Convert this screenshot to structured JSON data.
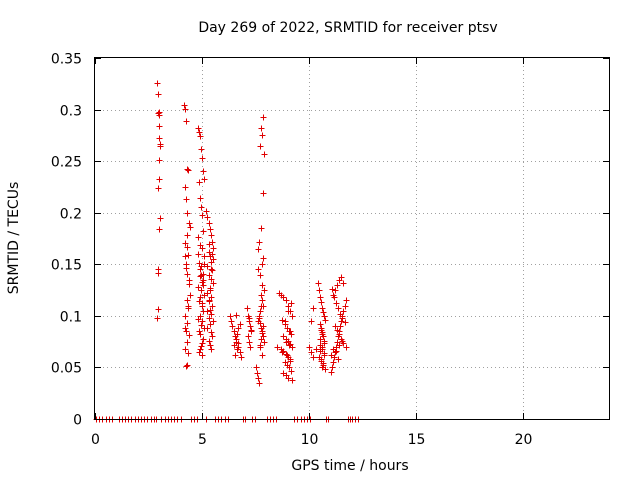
{
  "chart_data": {
    "type": "scatter",
    "title": "Day 269 of 2022, SRMTID for receiver ptsv",
    "xlabel": "GPS time / hours",
    "ylabel": "SRMTID / TECUs",
    "xlim": [
      0,
      24
    ],
    "ylim": [
      0,
      0.35
    ],
    "xticks": [
      0,
      5,
      10,
      15,
      20
    ],
    "xtick_labels": [
      "0",
      "5",
      "10",
      "15",
      "20"
    ],
    "yticks": [
      0,
      0.05,
      0.1,
      0.15,
      0.2,
      0.25,
      0.3,
      0.35
    ],
    "ytick_labels": [
      "0",
      "0.05",
      "0.1",
      "0.15",
      "0.2",
      "0.25",
      "0.3",
      "0.35"
    ],
    "grid": true,
    "marker": "+",
    "color": "#e00000",
    "series": [
      {
        "x": [
          2.9,
          2.92,
          2.95,
          2.98,
          3.0,
          3.02,
          3.05,
          2.97,
          3.0,
          2.95,
          3.02,
          3.0,
          2.92,
          2.95,
          2.93,
          2.9,
          3.0,
          2.98,
          4.15,
          4.2,
          4.25,
          4.3,
          4.35,
          4.2,
          4.25,
          4.3,
          4.4,
          4.45,
          4.2,
          4.3,
          4.35,
          4.25,
          4.3,
          4.4,
          4.45,
          4.35,
          4.2,
          4.3,
          4.25,
          4.4,
          4.3,
          4.2,
          4.35,
          4.3,
          4.25,
          4.4,
          4.3,
          4.2,
          4.25,
          4.35,
          4.3,
          4.2,
          4.8,
          4.85,
          4.9,
          4.95,
          5.0,
          5.05,
          5.1,
          4.85,
          4.9,
          4.95,
          5.0,
          5.05,
          4.8,
          4.9,
          5.0,
          5.1,
          4.85,
          4.95,
          5.05,
          4.9,
          5.0,
          4.8,
          4.95,
          5.1,
          4.85,
          5.0,
          5.05,
          4.9,
          4.8,
          5.0,
          4.95,
          5.1,
          4.85,
          4.9,
          5.05,
          5.0,
          4.95,
          4.9,
          4.85,
          5.0,
          5.1,
          4.9,
          4.95,
          5.05,
          4.8,
          5.0,
          4.9,
          5.05,
          5.2,
          5.25,
          5.3,
          5.35,
          5.4,
          5.45,
          5.5,
          5.3,
          5.35,
          5.4,
          5.25,
          5.45,
          5.3,
          5.4,
          5.5,
          5.35,
          5.25,
          5.4,
          5.3,
          5.45,
          5.35,
          5.4,
          5.3,
          5.5,
          5.35,
          5.25,
          5.4,
          5.45,
          5.3,
          5.35,
          5.4,
          5.3,
          5.45,
          5.5,
          5.35,
          5.4,
          5.3,
          5.25,
          6.3,
          6.35,
          6.4,
          6.5,
          6.55,
          6.6,
          6.7,
          6.75,
          6.8,
          6.6,
          6.65,
          6.7,
          6.5,
          6.6,
          6.75,
          6.65,
          6.55,
          6.7,
          7.1,
          7.15,
          7.2,
          7.25,
          7.3,
          7.15,
          7.2,
          7.25,
          7.2,
          7.3,
          7.5,
          7.55,
          7.6,
          7.65,
          7.7,
          7.75,
          7.8,
          7.85,
          7.6,
          7.65,
          7.7,
          7.75,
          7.8,
          7.85,
          7.6,
          7.7,
          7.8,
          7.9,
          7.75,
          7.8,
          7.85,
          7.65,
          7.7,
          7.75,
          7.8,
          7.85,
          7.9,
          7.7,
          7.8,
          7.6,
          7.65,
          7.75,
          7.85,
          7.9,
          7.7,
          7.8,
          7.75,
          7.85,
          8.5,
          8.6,
          8.7,
          8.8,
          8.9,
          9.0,
          9.1,
          9.2,
          8.75,
          8.85,
          8.95,
          9.05,
          9.15,
          8.8,
          8.9,
          9.0,
          9.1,
          9.2,
          8.7,
          8.8,
          8.9,
          9.0,
          9.1,
          8.85,
          8.95,
          9.05,
          9.15,
          8.8,
          8.9,
          9.0,
          9.2,
          8.75,
          8.9,
          9.1,
          8.85,
          9.0,
          9.15,
          9.05,
          8.95,
          9.1,
          10.0,
          10.1,
          10.2,
          10.3,
          10.1,
          10.2,
          10.4,
          10.45,
          10.5,
          10.55,
          10.6,
          10.65,
          10.7,
          10.75,
          10.5,
          10.55,
          10.6,
          10.65,
          10.7,
          10.5,
          10.6,
          10.7,
          10.45,
          10.55,
          10.65,
          10.75,
          10.6,
          10.5,
          10.7,
          10.55,
          10.65,
          10.6,
          10.7,
          10.5,
          10.6,
          10.55,
          11.0,
          11.05,
          11.1,
          11.15,
          11.2,
          11.25,
          11.3,
          11.35,
          11.4,
          11.45,
          11.5,
          11.55,
          11.6,
          11.65,
          11.7,
          11.1,
          11.2,
          11.3,
          11.4,
          11.5,
          11.6,
          11.05,
          11.15,
          11.25,
          11.35,
          11.45,
          11.55,
          11.65,
          11.2,
          11.3,
          11.4,
          11.5,
          11.6,
          11.7,
          11.1,
          11.25,
          11.4,
          11.55,
          11.0,
          11.35
        ],
        "y": [
          0.326,
          0.315,
          0.297,
          0.295,
          0.284,
          0.267,
          0.265,
          0.251,
          0.233,
          0.224,
          0.195,
          0.184,
          0.145,
          0.142,
          0.107,
          0.098,
          0.272,
          0.298,
          0.304,
          0.301,
          0.289,
          0.242,
          0.241,
          0.225,
          0.213,
          0.2,
          0.19,
          0.186,
          0.171,
          0.167,
          0.159,
          0.15,
          0.141,
          0.135,
          0.12,
          0.11,
          0.1,
          0.093,
          0.085,
          0.081,
          0.075,
          0.068,
          0.064,
          0.052,
          0.051,
          0.131,
          0.178,
          0.158,
          0.146,
          0.108,
          0.115,
          0.088,
          0.282,
          0.278,
          0.274,
          0.262,
          0.253,
          0.24,
          0.233,
          0.23,
          0.214,
          0.206,
          0.198,
          0.182,
          0.176,
          0.169,
          0.166,
          0.158,
          0.151,
          0.148,
          0.141,
          0.139,
          0.133,
          0.128,
          0.125,
          0.12,
          0.114,
          0.11,
          0.105,
          0.1,
          0.097,
          0.095,
          0.091,
          0.088,
          0.085,
          0.082,
          0.078,
          0.074,
          0.071,
          0.068,
          0.065,
          0.062,
          0.15,
          0.145,
          0.14,
          0.135,
          0.16,
          0.112,
          0.118,
          0.13,
          0.202,
          0.196,
          0.19,
          0.184,
          0.178,
          0.172,
          0.166,
          0.162,
          0.158,
          0.152,
          0.148,
          0.144,
          0.14,
          0.136,
          0.132,
          0.127,
          0.122,
          0.118,
          0.114,
          0.11,
          0.106,
          0.102,
          0.098,
          0.095,
          0.092,
          0.088,
          0.084,
          0.08,
          0.076,
          0.072,
          0.068,
          0.17,
          0.16,
          0.155,
          0.125,
          0.145,
          0.115,
          0.105,
          0.1,
          0.095,
          0.09,
          0.085,
          0.08,
          0.075,
          0.07,
          0.065,
          0.06,
          0.101,
          0.082,
          0.088,
          0.072,
          0.078,
          0.092,
          0.068,
          0.062,
          0.074,
          0.108,
          0.1,
          0.095,
          0.09,
          0.085,
          0.08,
          0.075,
          0.07,
          0.098,
          0.086,
          0.05,
          0.045,
          0.04,
          0.035,
          0.072,
          0.078,
          0.085,
          0.09,
          0.095,
          0.1,
          0.105,
          0.11,
          0.15,
          0.156,
          0.145,
          0.14,
          0.13,
          0.125,
          0.12,
          0.115,
          0.11,
          0.098,
          0.093,
          0.088,
          0.083,
          0.08,
          0.075,
          0.07,
          0.062,
          0.165,
          0.172,
          0.185,
          0.219,
          0.257,
          0.265,
          0.275,
          0.282,
          0.293,
          0.07,
          0.122,
          0.12,
          0.118,
          0.115,
          0.11,
          0.105,
          0.1,
          0.096,
          0.092,
          0.088,
          0.085,
          0.082,
          0.08,
          0.078,
          0.076,
          0.073,
          0.07,
          0.068,
          0.066,
          0.063,
          0.06,
          0.058,
          0.055,
          0.052,
          0.05,
          0.047,
          0.045,
          0.043,
          0.04,
          0.038,
          0.065,
          0.075,
          0.085,
          0.095,
          0.105,
          0.112,
          0.072,
          0.062,
          0.056,
          0.07,
          0.065,
          0.06,
          0.068,
          0.095,
          0.108,
          0.132,
          0.125,
          0.118,
          0.113,
          0.108,
          0.104,
          0.1,
          0.096,
          0.092,
          0.088,
          0.084,
          0.08,
          0.076,
          0.072,
          0.068,
          0.064,
          0.06,
          0.056,
          0.052,
          0.048,
          0.07,
          0.066,
          0.062,
          0.058,
          0.054,
          0.05,
          0.074,
          0.078,
          0.082,
          0.086,
          0.046,
          0.05,
          0.055,
          0.06,
          0.065,
          0.07,
          0.075,
          0.08,
          0.085,
          0.09,
          0.095,
          0.1,
          0.105,
          0.11,
          0.115,
          0.12,
          0.125,
          0.13,
          0.135,
          0.138,
          0.132,
          0.126,
          0.118,
          0.112,
          0.108,
          0.102,
          0.098,
          0.094,
          0.09,
          0.086,
          0.082,
          0.078,
          0.074,
          0.07,
          0.068,
          0.066,
          0.072,
          0.076,
          0.062,
          0.058
        ]
      },
      {
        "x": [
          0.05,
          0.2,
          0.35,
          0.5,
          0.65,
          0.8,
          1.1,
          1.25,
          1.4,
          1.55,
          1.7,
          1.85,
          2.0,
          2.15,
          2.3,
          2.45,
          2.6,
          2.75,
          2.85,
          3.1,
          3.25,
          3.4,
          3.55,
          3.7,
          3.85,
          4.0,
          4.5,
          4.6,
          4.75,
          5.2,
          5.6,
          5.75,
          5.9,
          6.05,
          6.2,
          6.9,
          7.0,
          7.35,
          7.45,
          8.05,
          8.15,
          8.3,
          8.45,
          9.3,
          9.45,
          9.6,
          9.75,
          9.9,
          10.05,
          10.8,
          10.9,
          11.8,
          11.9,
          12.0,
          12.15,
          12.3
        ],
        "y": [
          0,
          0,
          0,
          0,
          0,
          0,
          0,
          0,
          0,
          0,
          0,
          0,
          0,
          0,
          0,
          0,
          0,
          0,
          0,
          0,
          0,
          0,
          0,
          0,
          0,
          0,
          0,
          0,
          0,
          0,
          0,
          0,
          0,
          0,
          0,
          0,
          0,
          0,
          0,
          0,
          0,
          0,
          0,
          0,
          0,
          0,
          0,
          0,
          0,
          0,
          0,
          0,
          0,
          0,
          0,
          0
        ]
      }
    ]
  }
}
